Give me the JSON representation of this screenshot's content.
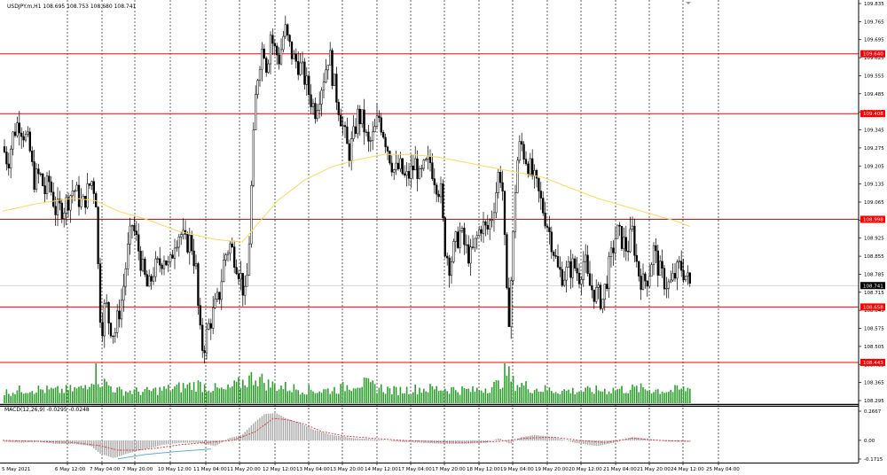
{
  "header": {
    "symbol_info": "USDJPY.m,H1  108.695 108.753 108.680 108.741"
  },
  "macd_title": "MACD(12,26,9) -0.0295 -0.0248",
  "colors": {
    "candle": "#000000",
    "level_line": "#ff0000",
    "ma": "#ffd75a",
    "volume": "#2e9e2e",
    "macd_hist": "#a8a8a8",
    "macd_signal": "#e03030",
    "macd_extra": "#4aa3df",
    "grid": "#000000",
    "current_price_bg": "#000000",
    "level_tag_bg": "#ff0000"
  },
  "chart_data": [
    {
      "type": "candlestick",
      "symbol": "USDJPY.m",
      "timeframe": "H1",
      "ohlc_last": {
        "open": 108.695,
        "high": 108.753,
        "low": 108.68,
        "close": 108.741
      },
      "ylim": [
        108.295,
        109.835
      ],
      "y_ticks": [
        "109.835",
        "109.765",
        "109.695",
        "109.625",
        "109.555",
        "109.485",
        "109.415",
        "109.345",
        "109.275",
        "109.205",
        "109.135",
        "109.065",
        "108.995",
        "108.925",
        "108.855",
        "108.785",
        "108.715",
        "108.645",
        "108.575",
        "108.505",
        "108.435",
        "108.365",
        "108.295"
      ],
      "x_labels": [
        "5 May 2021",
        "6 May 12:00",
        "7 May 04:00",
        "7 May 20:00",
        "10 May 12:00",
        "11 May 04:00",
        "11 May 20:00",
        "12 May 12:00",
        "13 May 04:00",
        "13 May 20:00",
        "14 May 12:00",
        "17 May 04:00",
        "17 May 20:00",
        "18 May 12:00",
        "19 May 04:00",
        "19 May 20:00",
        "20 May 12:00",
        "21 May 04:00",
        "21 May 20:00",
        "24 May 12:00",
        "25 May 04:00"
      ],
      "current_price": 108.741,
      "levels": [
        109.64,
        109.408,
        108.998,
        108.658,
        108.443
      ],
      "close_path": [
        [
          0,
          109.28
        ],
        [
          6,
          109.22
        ],
        [
          12,
          109.33
        ],
        [
          18,
          109.38
        ],
        [
          24,
          109.33
        ],
        [
          30,
          109.28
        ],
        [
          35,
          109.15
        ],
        [
          42,
          109.17
        ],
        [
          48,
          109.1
        ],
        [
          52,
          109.15
        ],
        [
          60,
          109.03
        ],
        [
          70,
          109.05
        ],
        [
          80,
          109.12
        ],
        [
          90,
          109.05
        ],
        [
          100,
          109.15
        ],
        [
          105,
          109.1
        ],
        [
          109,
          108.66
        ],
        [
          112,
          108.58
        ],
        [
          116,
          108.68
        ],
        [
          120,
          108.6
        ],
        [
          126,
          108.55
        ],
        [
          130,
          108.62
        ],
        [
          135,
          108.7
        ],
        [
          140,
          108.85
        ],
        [
          146,
          108.98
        ],
        [
          152,
          108.9
        ],
        [
          158,
          108.8
        ],
        [
          164,
          108.72
        ],
        [
          170,
          108.8
        ],
        [
          176,
          108.82
        ],
        [
          182,
          108.86
        ],
        [
          188,
          108.8
        ],
        [
          194,
          108.92
        ],
        [
          200,
          108.95
        ],
        [
          206,
          108.9
        ],
        [
          212,
          108.92
        ],
        [
          218,
          108.8
        ],
        [
          222,
          108.56
        ],
        [
          226,
          108.49
        ],
        [
          232,
          108.58
        ],
        [
          238,
          108.64
        ],
        [
          244,
          108.7
        ],
        [
          250,
          108.85
        ],
        [
          256,
          108.9
        ],
        [
          262,
          108.85
        ],
        [
          268,
          108.78
        ],
        [
          274,
          108.68
        ],
        [
          278,
          108.92
        ],
        [
          282,
          109.25
        ],
        [
          286,
          109.52
        ],
        [
          290,
          109.62
        ],
        [
          294,
          109.68
        ],
        [
          298,
          109.58
        ],
        [
          302,
          109.72
        ],
        [
          306,
          109.66
        ],
        [
          312,
          109.62
        ],
        [
          318,
          109.74
        ],
        [
          322,
          109.68
        ],
        [
          328,
          109.62
        ],
        [
          334,
          109.6
        ],
        [
          340,
          109.55
        ],
        [
          346,
          109.48
        ],
        [
          352,
          109.42
        ],
        [
          358,
          109.5
        ],
        [
          364,
          109.58
        ],
        [
          368,
          109.65
        ],
        [
          372,
          109.55
        ],
        [
          378,
          109.45
        ],
        [
          384,
          109.35
        ],
        [
          390,
          109.25
        ],
        [
          396,
          109.32
        ],
        [
          400,
          109.4
        ],
        [
          406,
          109.38
        ],
        [
          412,
          109.28
        ],
        [
          418,
          109.32
        ],
        [
          424,
          109.4
        ],
        [
          430,
          109.33
        ],
        [
          436,
          109.25
        ],
        [
          442,
          109.18
        ],
        [
          448,
          109.2
        ],
        [
          454,
          109.15
        ],
        [
          460,
          109.18
        ],
        [
          466,
          109.22
        ],
        [
          470,
          109.15
        ],
        [
          476,
          109.2
        ],
        [
          482,
          109.22
        ],
        [
          488,
          109.15
        ],
        [
          494,
          109.1
        ],
        [
          498,
          108.9
        ],
        [
          504,
          108.82
        ],
        [
          510,
          108.9
        ],
        [
          516,
          108.95
        ],
        [
          522,
          108.88
        ],
        [
          528,
          108.85
        ],
        [
          534,
          108.92
        ],
        [
          540,
          108.98
        ],
        [
          546,
          108.95
        ],
        [
          552,
          109.02
        ],
        [
          556,
          109.1
        ],
        [
          560,
          109.2
        ],
        [
          564,
          109.1
        ],
        [
          568,
          108.7
        ],
        [
          571,
          108.62
        ],
        [
          575,
          108.88
        ],
        [
          579,
          109.2
        ],
        [
          584,
          109.3
        ],
        [
          588,
          109.25
        ],
        [
          592,
          109.22
        ],
        [
          596,
          109.18
        ],
        [
          602,
          109.12
        ],
        [
          608,
          109.05
        ],
        [
          614,
          108.98
        ],
        [
          620,
          108.9
        ],
        [
          626,
          108.8
        ],
        [
          632,
          108.78
        ],
        [
          638,
          108.8
        ],
        [
          644,
          108.82
        ],
        [
          650,
          108.78
        ],
        [
          656,
          108.85
        ],
        [
          660,
          108.75
        ],
        [
          666,
          108.72
        ],
        [
          672,
          108.7
        ],
        [
          676,
          108.68
        ],
        [
          680,
          108.75
        ],
        [
          686,
          108.85
        ],
        [
          692,
          108.95
        ],
        [
          698,
          108.92
        ],
        [
          704,
          108.88
        ],
        [
          710,
          108.95
        ],
        [
          716,
          108.8
        ],
        [
          722,
          108.75
        ],
        [
          728,
          108.78
        ],
        [
          734,
          108.88
        ],
        [
          740,
          108.8
        ],
        [
          746,
          108.76
        ],
        [
          752,
          108.74
        ],
        [
          758,
          108.78
        ],
        [
          764,
          108.82
        ],
        [
          770,
          108.78
        ],
        [
          775,
          108.74
        ]
      ],
      "moving_average_path": [
        [
          0,
          109.03
        ],
        [
          40,
          109.06
        ],
        [
          80,
          109.08
        ],
        [
          105,
          109.07
        ],
        [
          130,
          109.03
        ],
        [
          160,
          109.0
        ],
        [
          200,
          108.95
        ],
        [
          240,
          108.92
        ],
        [
          270,
          108.91
        ],
        [
          285,
          108.97
        ],
        [
          310,
          109.07
        ],
        [
          340,
          109.15
        ],
        [
          370,
          109.2
        ],
        [
          400,
          109.23
        ],
        [
          430,
          109.25
        ],
        [
          460,
          109.25
        ],
        [
          490,
          109.24
        ],
        [
          520,
          109.22
        ],
        [
          550,
          109.2
        ],
        [
          580,
          109.18
        ],
        [
          610,
          109.16
        ],
        [
          640,
          109.12
        ],
        [
          670,
          109.08
        ],
        [
          700,
          109.05
        ],
        [
          730,
          109.02
        ],
        [
          760,
          108.99
        ],
        [
          775,
          108.97
        ]
      ],
      "volume_range": [
        0,
        1
      ],
      "volume_path": [
        [
          0,
          0.25
        ],
        [
          30,
          0.35
        ],
        [
          60,
          0.3
        ],
        [
          90,
          0.35
        ],
        [
          105,
          0.75
        ],
        [
          110,
          0.55
        ],
        [
          130,
          0.3
        ],
        [
          160,
          0.28
        ],
        [
          190,
          0.35
        ],
        [
          220,
          0.45
        ],
        [
          250,
          0.3
        ],
        [
          275,
          0.55
        ],
        [
          285,
          0.65
        ],
        [
          300,
          0.45
        ],
        [
          330,
          0.35
        ],
        [
          360,
          0.3
        ],
        [
          380,
          0.35
        ],
        [
          400,
          0.5
        ],
        [
          420,
          0.4
        ],
        [
          440,
          0.3
        ],
        [
          470,
          0.35
        ],
        [
          500,
          0.35
        ],
        [
          530,
          0.3
        ],
        [
          560,
          0.45
        ],
        [
          568,
          0.78
        ],
        [
          575,
          0.5
        ],
        [
          600,
          0.35
        ],
        [
          630,
          0.3
        ],
        [
          660,
          0.3
        ],
        [
          690,
          0.33
        ],
        [
          720,
          0.35
        ],
        [
          750,
          0.3
        ],
        [
          775,
          0.35
        ]
      ],
      "macd": {
        "ylim": [
          -0.1715,
          0.2667
        ],
        "y_ticks": [
          "0.2667",
          "0.00",
          "-0.1715"
        ],
        "histogram_path": [
          [
            0,
            -0.01
          ],
          [
            20,
            -0.02
          ],
          [
            40,
            -0.01
          ],
          [
            60,
            -0.03
          ],
          [
            80,
            -0.03
          ],
          [
            100,
            -0.05
          ],
          [
            110,
            -0.12
          ],
          [
            125,
            -0.16
          ],
          [
            140,
            -0.12
          ],
          [
            160,
            -0.08
          ],
          [
            180,
            -0.04
          ],
          [
            200,
            -0.02
          ],
          [
            220,
            -0.02
          ],
          [
            240,
            -0.05
          ],
          [
            255,
            0.02
          ],
          [
            270,
            0.05
          ],
          [
            282,
            0.15
          ],
          [
            295,
            0.24
          ],
          [
            308,
            0.25
          ],
          [
            320,
            0.2
          ],
          [
            335,
            0.16
          ],
          [
            350,
            0.1
          ],
          [
            370,
            0.05
          ],
          [
            395,
            0.02
          ],
          [
            420,
            0.01
          ],
          [
            445,
            -0.01
          ],
          [
            470,
            -0.02
          ],
          [
            495,
            -0.03
          ],
          [
            520,
            -0.03
          ],
          [
            545,
            -0.02
          ],
          [
            560,
            0.02
          ],
          [
            572,
            -0.03
          ],
          [
            585,
            0.03
          ],
          [
            600,
            0.05
          ],
          [
            620,
            0.03
          ],
          [
            645,
            -0.02
          ],
          [
            670,
            -0.05
          ],
          [
            690,
            -0.02
          ],
          [
            710,
            0.03
          ],
          [
            730,
            0.01
          ],
          [
            750,
            -0.01
          ],
          [
            775,
            -0.01
          ]
        ],
        "signal_path": [
          [
            0,
            0.0
          ],
          [
            40,
            -0.01
          ],
          [
            80,
            -0.02
          ],
          [
            110,
            -0.05
          ],
          [
            130,
            -0.09
          ],
          [
            150,
            -0.09
          ],
          [
            175,
            -0.07
          ],
          [
            200,
            -0.04
          ],
          [
            230,
            -0.02
          ],
          [
            260,
            0.0
          ],
          [
            285,
            0.08
          ],
          [
            305,
            0.2
          ],
          [
            320,
            0.19
          ],
          [
            340,
            0.15
          ],
          [
            360,
            0.08
          ],
          [
            385,
            0.04
          ],
          [
            415,
            0.02
          ],
          [
            450,
            0.0
          ],
          [
            480,
            -0.01
          ],
          [
            520,
            -0.02
          ],
          [
            560,
            -0.01
          ],
          [
            590,
            0.02
          ],
          [
            620,
            0.03
          ],
          [
            650,
            0.0
          ],
          [
            680,
            -0.02
          ],
          [
            710,
            0.02
          ],
          [
            740,
            0.0
          ],
          [
            775,
            -0.01
          ]
        ],
        "extra_path": [
          [
            130,
            -0.17
          ],
          [
            160,
            -0.13
          ],
          [
            200,
            -0.1
          ],
          [
            235,
            -0.08
          ]
        ]
      }
    }
  ]
}
